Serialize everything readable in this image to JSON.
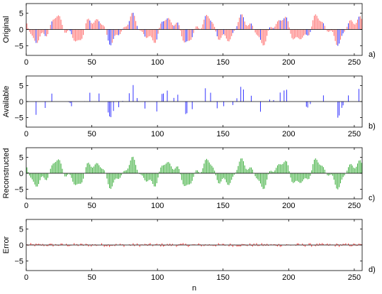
{
  "figure": {
    "xlabel": "n",
    "colors": {
      "original_missing": "#ff6666",
      "original_available": "#3333ff",
      "available": "#3333ff",
      "reconstructed": "#33aa33",
      "error": "#ff3333",
      "axis": "#000000"
    }
  },
  "chart_data": [
    {
      "type": "bar",
      "ylabel": "Original",
      "panel_label": "a)",
      "xlim": [
        0,
        256
      ],
      "ylim": [
        -8,
        8
      ],
      "xticks": [
        0,
        50,
        100,
        150,
        200,
        250
      ],
      "yticks": [
        -5,
        0,
        5
      ],
      "series": [
        {
          "name": "",
          "note": "missing samples (red) and available samples (blue)"
        }
      ]
    },
    {
      "type": "bar",
      "ylabel": "Available",
      "panel_label": "b)",
      "xlim": [
        0,
        256
      ],
      "ylim": [
        -8,
        8
      ],
      "xticks": [
        0,
        50,
        100,
        150,
        200,
        250
      ],
      "yticks": [
        -5,
        0,
        5
      ]
    },
    {
      "type": "bar",
      "ylabel": "Reconstructed",
      "panel_label": "c)",
      "xlim": [
        0,
        256
      ],
      "ylim": [
        -8,
        8
      ],
      "xticks": [
        0,
        50,
        100,
        150,
        200,
        250
      ],
      "yticks": [
        -5,
        0,
        5
      ]
    },
    {
      "type": "bar",
      "ylabel": "Error",
      "panel_label": "d)",
      "xlim": [
        0,
        256
      ],
      "ylim": [
        -8,
        8
      ],
      "xticks": [
        0,
        50,
        100,
        150,
        200,
        250
      ],
      "yticks": [
        -5,
        0,
        5
      ]
    }
  ],
  "available_indices": [
    7,
    14,
    19,
    32,
    33,
    34,
    44,
    48,
    55,
    62,
    63,
    64,
    66,
    70,
    73,
    78,
    81,
    84,
    85,
    90,
    99,
    103,
    104,
    107,
    112,
    115,
    121,
    122,
    126,
    136,
    140,
    145,
    150,
    157,
    160,
    163,
    165,
    171,
    178,
    185,
    188,
    193,
    196,
    198,
    213,
    214,
    216,
    226,
    237,
    238,
    240,
    241,
    245,
    253
  ]
}
